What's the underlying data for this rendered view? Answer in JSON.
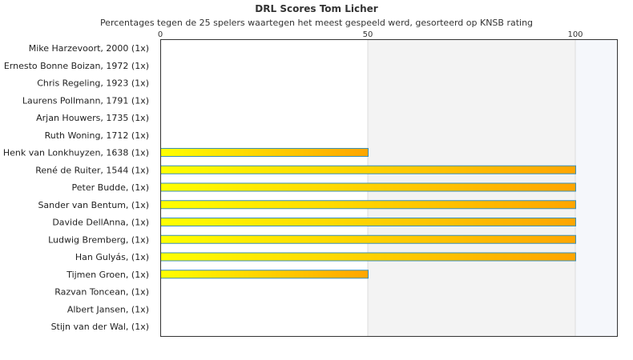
{
  "chart_data": {
    "type": "bar",
    "orientation": "horizontal",
    "title": "DRL Scores Tom Licher",
    "subtitle": "Percentages tegen de 25 spelers waartegen het meest gespeeld werd, gesorteerd op KNSB rating",
    "xlabel": "",
    "ylabel": "",
    "xlim": [
      0,
      110
    ],
    "x_ticks": [
      "0",
      "50",
      "100"
    ],
    "grid": true,
    "categories": [
      "Mike Harzevoort, 2000 (1x)",
      "Ernesto Bonne Boizan, 1972 (1x)",
      "Chris Regeling, 1923 (1x)",
      "Laurens Pollmann, 1791 (1x)",
      "Arjan Houwers, 1735 (1x)",
      "Ruth Woning, 1712 (1x)",
      "Henk van Lonkhuyzen, 1638 (1x)",
      "René de Ruiter, 1544 (1x)",
      "Peter Budde,  (1x)",
      "Sander van Bentum,  (1x)",
      "Davide DellAnna,  (1x)",
      "Ludwig Bremberg,  (1x)",
      "Han Gulyás,  (1x)",
      "Tijmen Groen,  (1x)",
      "Razvan Toncean,  (1x)",
      "Albert Jansen,  (1x)",
      "Stijn van der Wal,  (1x)"
    ],
    "values": [
      0,
      0,
      0,
      0,
      0,
      0,
      50,
      100,
      100,
      100,
      100,
      100,
      100,
      50,
      0,
      0,
      0
    ],
    "colors": {
      "bar_start": "#ffff00",
      "bar_end": "#ffa500",
      "bar_stroke": "#3a8fb7",
      "band_mid": "#f3f3f3",
      "band_high": "#f5f7fb",
      "axis": "#333333",
      "grid": "#dddddd"
    }
  }
}
